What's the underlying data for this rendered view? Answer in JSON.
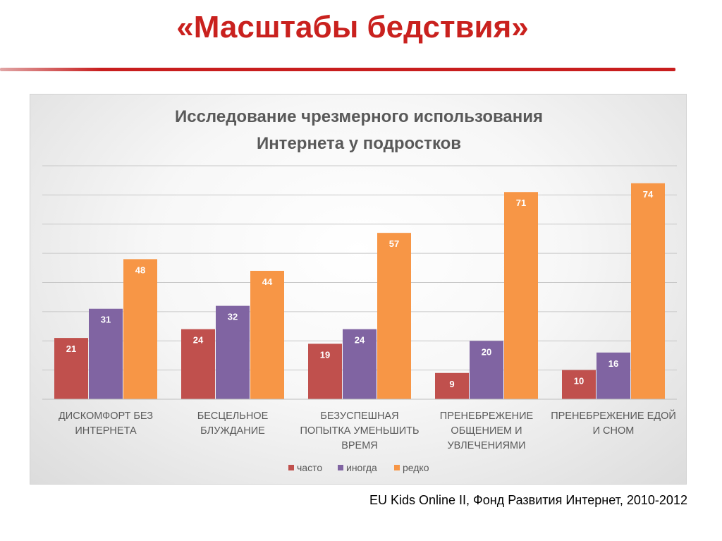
{
  "slide": {
    "title": "«Масштабы бедствия»",
    "source": "EU Kids Online II, Фонд Развития Интернет, 2010-2012"
  },
  "colors": {
    "accent": "#c9211e",
    "series": [
      "#c0504d",
      "#8064a2",
      "#f79646"
    ],
    "grid": "#c8c8c8",
    "text": "#595959"
  },
  "chart_data": {
    "type": "bar",
    "title_lines": [
      "Исследование чрезмерного использования",
      "Интернета у подростков"
    ],
    "categories": [
      [
        "ДИСКОМФОРТ БЕЗ",
        "ИНТЕРНЕТА"
      ],
      [
        "БЕСЦЕЛЬНОЕ",
        "БЛУЖДАНИЕ"
      ],
      [
        "БЕЗУСПЕШНАЯ",
        "ПОПЫТКА УМЕНЬШИТЬ",
        "ВРЕМЯ"
      ],
      [
        "ПРЕНЕБРЕЖЕНИЕ",
        "ОБЩЕНИЕМ И",
        "УВЛЕЧЕНИЯМИ"
      ],
      [
        "ПРЕНЕБРЕЖЕНИЕ ЕДОЙ",
        "И СНОМ"
      ]
    ],
    "series": [
      {
        "name": "часто",
        "values": [
          21,
          24,
          19,
          9,
          10
        ]
      },
      {
        "name": "иногда",
        "values": [
          31,
          32,
          24,
          20,
          16
        ]
      },
      {
        "name": "редко",
        "values": [
          48,
          44,
          57,
          71,
          74
        ]
      }
    ],
    "ylim": [
      0,
      80
    ],
    "ytick_step": 10,
    "grid": true,
    "legend_position": "bottom",
    "xlabel": "",
    "ylabel": ""
  }
}
